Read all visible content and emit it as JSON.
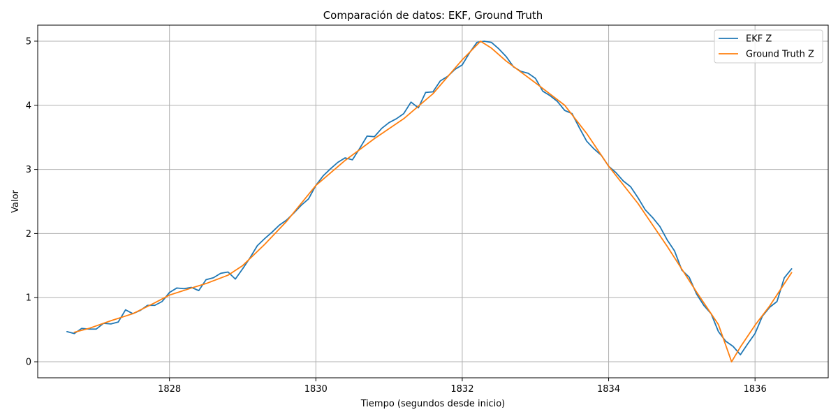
{
  "chart_data": {
    "type": "line",
    "title": "Comparación de datos: EKF, Ground Truth",
    "xlabel": "Tiempo (segundos desde inicio)",
    "ylabel": "Valor",
    "xlim": [
      1826.2,
      1837.0
    ],
    "ylim": [
      -0.25,
      5.25
    ],
    "xticks": [
      1828,
      1830,
      1832,
      1834,
      1836
    ],
    "yticks": [
      0,
      1,
      2,
      3,
      4,
      5
    ],
    "grid": true,
    "legend_position": "top-right",
    "series": [
      {
        "name": "EKF Z",
        "color": "#1f77b4",
        "x": [
          1826.6,
          1826.7,
          1826.8,
          1826.9,
          1827.0,
          1827.1,
          1827.2,
          1827.3,
          1827.4,
          1827.5,
          1827.6,
          1827.7,
          1827.8,
          1827.9,
          1828.0,
          1828.1,
          1828.2,
          1828.3,
          1828.4,
          1828.5,
          1828.6,
          1828.7,
          1828.8,
          1828.9,
          1829.0,
          1829.1,
          1829.2,
          1829.3,
          1829.4,
          1829.5,
          1829.6,
          1829.7,
          1829.8,
          1829.9,
          1830.0,
          1830.1,
          1830.2,
          1830.3,
          1830.4,
          1830.5,
          1830.6,
          1830.7,
          1830.8,
          1830.9,
          1831.0,
          1831.1,
          1831.2,
          1831.3,
          1831.4,
          1831.5,
          1831.6,
          1831.7,
          1831.8,
          1831.9,
          1832.0,
          1832.1,
          1832.2,
          1832.3,
          1832.4,
          1832.5,
          1832.6,
          1832.7,
          1832.8,
          1832.9,
          1833.0,
          1833.1,
          1833.2,
          1833.3,
          1833.4,
          1833.5,
          1833.6,
          1833.7,
          1833.8,
          1833.9,
          1834.0,
          1834.1,
          1834.2,
          1834.3,
          1834.4,
          1834.5,
          1834.6,
          1834.7,
          1834.8,
          1834.9,
          1835.0,
          1835.1,
          1835.2,
          1835.3,
          1835.4,
          1835.5,
          1835.6,
          1835.7,
          1835.8,
          1835.9,
          1836.0,
          1836.1,
          1836.2,
          1836.3,
          1836.4,
          1836.5
        ],
        "y": [
          0.47,
          0.44,
          0.52,
          0.51,
          0.51,
          0.6,
          0.59,
          0.62,
          0.81,
          0.75,
          0.8,
          0.88,
          0.88,
          0.94,
          1.08,
          1.15,
          1.14,
          1.16,
          1.11,
          1.28,
          1.31,
          1.38,
          1.4,
          1.29,
          1.45,
          1.62,
          1.81,
          1.92,
          2.02,
          2.13,
          2.21,
          2.32,
          2.44,
          2.54,
          2.75,
          2.9,
          3.01,
          3.11,
          3.18,
          3.15,
          3.33,
          3.52,
          3.51,
          3.64,
          3.73,
          3.79,
          3.87,
          4.05,
          3.96,
          4.2,
          4.21,
          4.38,
          4.45,
          4.56,
          4.63,
          4.82,
          4.98,
          5.0,
          4.98,
          4.88,
          4.76,
          4.6,
          4.53,
          4.5,
          4.42,
          4.22,
          4.15,
          4.06,
          3.92,
          3.87,
          3.65,
          3.44,
          3.32,
          3.22,
          3.05,
          2.95,
          2.82,
          2.73,
          2.56,
          2.37,
          2.25,
          2.11,
          1.9,
          1.73,
          1.43,
          1.32,
          1.06,
          0.88,
          0.75,
          0.47,
          0.32,
          0.24,
          0.11,
          0.28,
          0.44,
          0.71,
          0.85,
          0.94,
          1.31,
          1.45
        ]
      },
      {
        "name": "Ground Truth Z",
        "color": "#ff7f0e",
        "x": [
          1826.7,
          1826.9,
          1827.2,
          1827.5,
          1827.8,
          1828.0,
          1828.3,
          1828.5,
          1828.8,
          1829.0,
          1829.3,
          1829.6,
          1830.0,
          1830.4,
          1830.8,
          1831.2,
          1831.6,
          1832.0,
          1832.25,
          1832.4,
          1832.6,
          1833.0,
          1833.4,
          1833.7,
          1834.0,
          1834.4,
          1834.8,
          1835.2,
          1835.5,
          1835.68,
          1835.8,
          1836.0,
          1836.2,
          1836.5
        ],
        "y": [
          0.46,
          0.52,
          0.64,
          0.75,
          0.92,
          1.04,
          1.15,
          1.22,
          1.35,
          1.5,
          1.83,
          2.19,
          2.75,
          3.14,
          3.48,
          3.79,
          4.18,
          4.71,
          5.0,
          4.89,
          4.69,
          4.35,
          4.0,
          3.56,
          3.05,
          2.47,
          1.8,
          1.09,
          0.58,
          0.0,
          0.23,
          0.57,
          0.87,
          1.39
        ]
      }
    ]
  }
}
